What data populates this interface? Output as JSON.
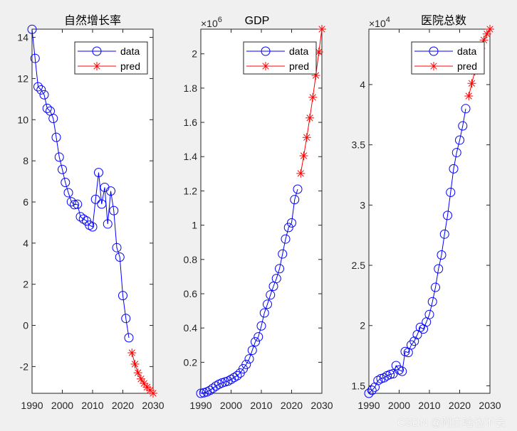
{
  "chart_data": [
    {
      "type": "line",
      "title": "自然增长率",
      "exponent_label": "",
      "x_data": [
        1990,
        1991,
        1992,
        1993,
        1994,
        1995,
        1996,
        1997,
        1998,
        1999,
        2000,
        2001,
        2002,
        2003,
        2004,
        2005,
        2006,
        2007,
        2008,
        2009,
        2010,
        2011,
        2012,
        2013,
        2014,
        2015,
        2016,
        2017,
        2018,
        2019,
        2020,
        2021,
        2022
      ],
      "x_pred": [
        2023,
        2024,
        2025,
        2026,
        2027,
        2028,
        2029,
        2030
      ],
      "series": [
        {
          "name": "data",
          "color": "#0000ff",
          "marker": "circle",
          "values": [
            14.39,
            12.98,
            11.6,
            11.45,
            11.21,
            10.55,
            10.42,
            10.06,
            9.14,
            8.18,
            7.58,
            6.95,
            6.45,
            6.01,
            5.87,
            5.89,
            5.28,
            5.17,
            5.08,
            4.87,
            4.79,
            6.13,
            7.43,
            5.9,
            6.71,
            4.93,
            6.53,
            5.58,
            3.78,
            3.32,
            1.45,
            0.34,
            -0.6
          ]
        },
        {
          "name": "pred",
          "color": "#ff0000",
          "marker": "asterisk",
          "values": [
            -1.33,
            -1.88,
            -2.3,
            -2.6,
            -2.82,
            -3.0,
            -3.15,
            -3.3
          ]
        }
      ],
      "xlim": [
        1990,
        2030
      ],
      "ylim": [
        -3.3,
        14.4
      ],
      "xticks": [
        "1990",
        "2000",
        "2010",
        "2020",
        "2030"
      ],
      "yticks": [
        "-2",
        "0",
        "2",
        "4",
        "6",
        "8",
        "10",
        "12",
        "14"
      ],
      "ytick_values": [
        -2,
        0,
        2,
        4,
        6,
        8,
        10,
        12,
        14
      ],
      "legend": "top-right",
      "grid": false
    },
    {
      "type": "line",
      "title": "GDP",
      "exponent_label": "×10",
      "exponent": "6",
      "x_data": [
        1990,
        1991,
        1992,
        1993,
        1994,
        1995,
        1996,
        1997,
        1998,
        1999,
        2000,
        2001,
        2002,
        2003,
        2004,
        2005,
        2006,
        2007,
        2008,
        2009,
        2010,
        2011,
        2012,
        2013,
        2014,
        2015,
        2016,
        2017,
        2018,
        2019,
        2020,
        2021,
        2022
      ],
      "x_pred": [
        2023,
        2024,
        2025,
        2026,
        2027,
        2028,
        2029,
        2030
      ],
      "series": [
        {
          "name": "data",
          "color": "#0000ff",
          "marker": "circle",
          "values": [
            18872,
            22005,
            27194,
            35673,
            48637,
            61339,
            71813,
            79715,
            85195,
            90564,
            100280,
            110863,
            121717,
            137422,
            161840,
            187319,
            219438,
            270092,
            319244,
            348517,
            412119,
            487940,
            538580,
            592963,
            643563,
            688858,
            746395,
            832036,
            919281,
            986515,
            1013567,
            1149237,
            1210207
          ]
        },
        {
          "name": "pred",
          "color": "#ff0000",
          "marker": "asterisk",
          "values": [
            1302000,
            1405000,
            1512000,
            1626000,
            1746000,
            1874000,
            2011000,
            2144000
          ]
        }
      ],
      "xlim": [
        1990,
        2030
      ],
      "ylim": [
        18872,
        2144000
      ],
      "xticks": [
        "1990",
        "2000",
        "2010",
        "2020",
        "2030"
      ],
      "yticks": [
        "0.2",
        "0.4",
        "0.6",
        "0.8",
        "1",
        "1.2",
        "1.4",
        "1.6",
        "1.8",
        "2"
      ],
      "ytick_values": [
        200000,
        400000,
        600000,
        800000,
        1000000,
        1200000,
        1400000,
        1600000,
        1800000,
        2000000
      ],
      "legend": "top-right",
      "grid": false
    },
    {
      "type": "line",
      "title": "医院总数",
      "exponent_label": "×10",
      "exponent": "4",
      "x_data": [
        1990,
        1991,
        1992,
        1993,
        1994,
        1995,
        1996,
        1997,
        1998,
        1999,
        2000,
        2001,
        2002,
        2003,
        2004,
        2005,
        2006,
        2007,
        2008,
        2009,
        2010,
        2011,
        2012,
        2013,
        2014,
        2015,
        2016,
        2017,
        2018,
        2019,
        2020,
        2021,
        2022
      ],
      "x_pred": [
        2023,
        2024,
        2025,
        2026,
        2027,
        2028,
        2029,
        2030
      ],
      "series": [
        {
          "name": "data",
          "color": "#0000ff",
          "marker": "circle",
          "values": [
            14377,
            14628,
            14889,
            15436,
            15595,
            15663,
            15833,
            15944,
            16001,
            16678,
            16318,
            16197,
            17844,
            17764,
            18393,
            18703,
            19246,
            19852,
            19712,
            20291,
            20918,
            21979,
            23170,
            24709,
            25860,
            27587,
            29140,
            31056,
            33009,
            34354,
            35394,
            36570,
            38000
          ]
        },
        {
          "name": "pred",
          "color": "#ff0000",
          "marker": "asterisk",
          "values": [
            39050,
            40100,
            41100,
            42100,
            43000,
            43700,
            44200,
            44600
          ]
        }
      ],
      "xlim": [
        1990,
        2030
      ],
      "ylim": [
        14377,
        44600
      ],
      "xticks": [
        "1990",
        "2000",
        "2010",
        "2020",
        "2030"
      ],
      "yticks": [
        "1.5",
        "2",
        "2.5",
        "3",
        "3.5",
        "4"
      ],
      "ytick_values": [
        15000,
        20000,
        25000,
        30000,
        35000,
        40000
      ],
      "legend": "top-right",
      "grid": false
    }
  ],
  "watermark": "CSDN @阿白啥也不会"
}
